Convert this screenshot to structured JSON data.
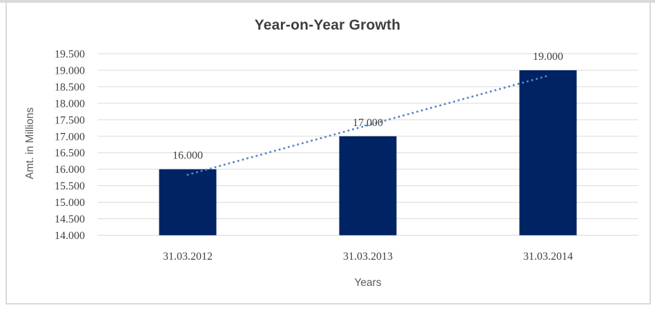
{
  "chart_data": {
    "type": "bar",
    "title": "Year-on-Year Growth",
    "xlabel": "Years",
    "ylabel": "Amt. in Millions",
    "categories": [
      "31.03.2012",
      "31.03.2013",
      "31.03.2014"
    ],
    "values": [
      16000,
      17000,
      19000
    ],
    "data_labels": [
      "16.000",
      "17.000",
      "19.000"
    ],
    "ylim": [
      14000,
      19500
    ],
    "y_tick_step": 500,
    "y_tick_values": [
      19500,
      19000,
      18500,
      18000,
      17500,
      17000,
      16500,
      16000,
      15500,
      15000,
      14500,
      14000
    ],
    "y_tick_labels": [
      "19.500",
      "19.000",
      "18.500",
      "18.000",
      "17.500",
      "17.000",
      "16.500",
      "16.000",
      "15.500",
      "15.000",
      "14.500",
      "14.000"
    ],
    "grid": true,
    "legend": "none",
    "trendline": {
      "type": "linear",
      "style": "dotted",
      "start_value": 15833,
      "end_value": 18833
    },
    "colors": {
      "bar": "#002364",
      "trendline": "#5588C7",
      "gridline": "#D9D9D9",
      "tick_text": "#404040",
      "axis_title_text": "#595959",
      "title_text": "#3F3F3F",
      "frame_border": "#D9D9D9",
      "background": "#FFFFFF"
    }
  }
}
